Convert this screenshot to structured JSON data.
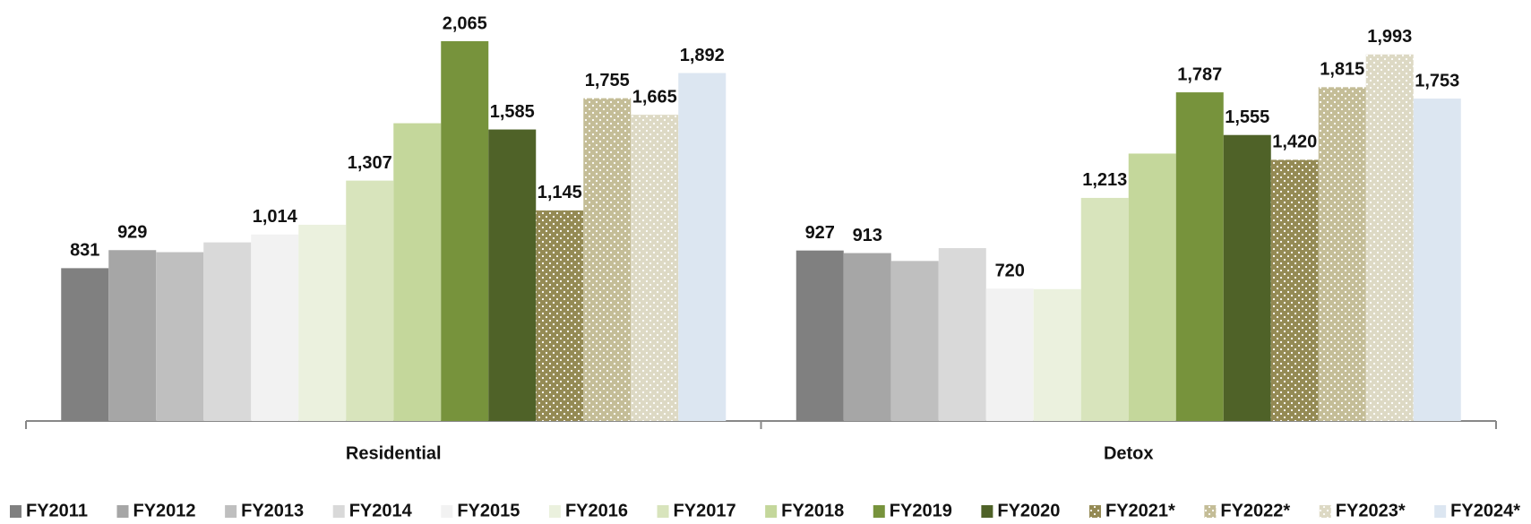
{
  "chart_data": {
    "type": "bar",
    "categories": [
      "Residential",
      "Detox"
    ],
    "series": [
      {
        "name": "FY2011",
        "color": "#808080",
        "values": [
          831,
          927
        ],
        "value_labels": [
          "831",
          "927"
        ]
      },
      {
        "name": "FY2012",
        "color": "#a6a6a6",
        "values": [
          929,
          913
        ],
        "value_labels": [
          "929",
          "913"
        ]
      },
      {
        "name": "FY2013",
        "color": "#bfbfbf",
        "values": [
          918,
          870
        ],
        "value_labels": [
          null,
          null
        ]
      },
      {
        "name": "FY2014",
        "color": "#d9d9d9",
        "values": [
          971,
          940
        ],
        "value_labels": [
          null,
          null
        ]
      },
      {
        "name": "FY2015",
        "color": "#f2f2f2",
        "values": [
          1014,
          720
        ],
        "value_labels": [
          "1,014",
          "720"
        ]
      },
      {
        "name": "FY2016",
        "color": "#ebf1de",
        "values": [
          1067,
          717
        ],
        "value_labels": [
          null,
          null
        ]
      },
      {
        "name": "FY2017",
        "color": "#d8e4bc",
        "values": [
          1307,
          1213
        ],
        "value_labels": [
          "1,307",
          "1,213"
        ]
      },
      {
        "name": "FY2018",
        "color": "#c4d79b",
        "values": [
          1619,
          1454
        ],
        "value_labels": [
          null,
          null
        ]
      },
      {
        "name": "FY2019",
        "color": "#77933c",
        "values": [
          2065,
          1787
        ],
        "value_labels": [
          "2,065",
          "1,787"
        ]
      },
      {
        "name": "FY2020",
        "color": "#4f6228",
        "values": [
          1585,
          1555
        ],
        "value_labels": [
          "1,585",
          "1,555"
        ]
      },
      {
        "name": "FY2021*",
        "color": "#948a54",
        "pattern": "dotted",
        "values": [
          1145,
          1420
        ],
        "value_labels": [
          "1,145",
          "1,420"
        ]
      },
      {
        "name": "FY2022*",
        "color": "#c4bd97",
        "pattern": "dotted",
        "values": [
          1755,
          1815
        ],
        "value_labels": [
          "1,755",
          "1,815"
        ]
      },
      {
        "name": "FY2023*",
        "color": "#ddd9c4",
        "pattern": "dotted",
        "values": [
          1665,
          1993
        ],
        "value_labels": [
          "1,665",
          "1,993"
        ]
      },
      {
        "name": "FY2024*",
        "color": "#dce6f1",
        "values": [
          1892,
          1753
        ],
        "value_labels": [
          "1,892",
          "1,753"
        ]
      }
    ],
    "legend": "bottom"
  }
}
